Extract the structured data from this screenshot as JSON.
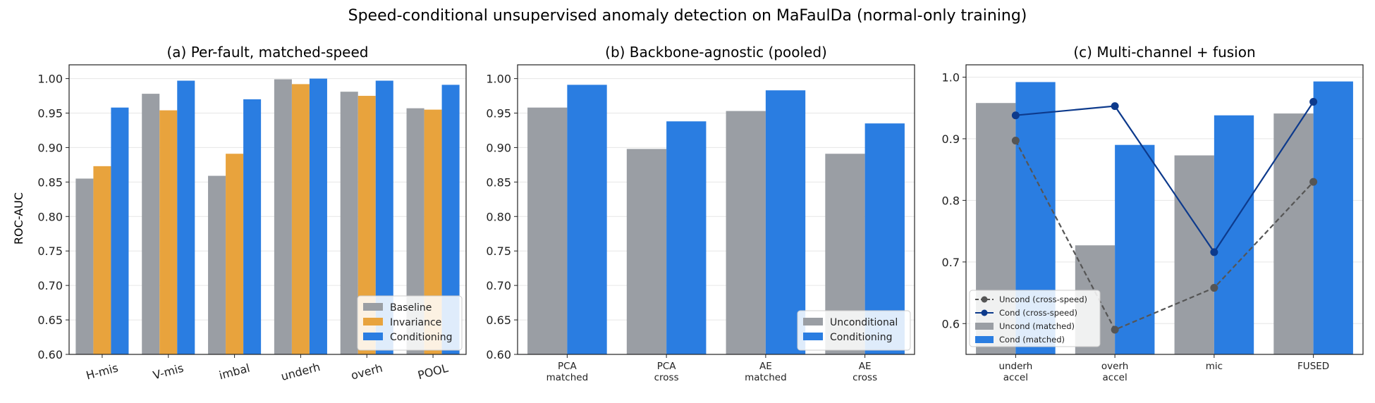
{
  "figure_title": "Speed-conditional unsupervised anomaly detection on MaFaulDa (normal-only training)",
  "colors": {
    "baseline": "#9a9ea4",
    "invariance": "#e8a33d",
    "conditioning": "#2a7de1",
    "uncond_line": "#555555",
    "cond_line": "#0d3a8c",
    "grid": "#e6e6e6"
  },
  "chart_data": [
    {
      "type": "bar",
      "title": "(a) Per-fault, matched-speed",
      "ylabel": "ROC-AUC",
      "xlabel": "",
      "ylim": [
        0.6,
        1.02
      ],
      "yticks": [
        "0.60",
        "0.65",
        "0.70",
        "0.75",
        "0.80",
        "0.85",
        "0.90",
        "0.95",
        "1.00"
      ],
      "categories": [
        "H-mis",
        "V-mis",
        "imbal",
        "underh",
        "overh",
        "POOL"
      ],
      "series": [
        {
          "name": "Baseline",
          "values": [
            0.855,
            0.978,
            0.859,
            0.999,
            0.981,
            0.957
          ]
        },
        {
          "name": "Invariance",
          "values": [
            0.873,
            0.954,
            0.891,
            0.992,
            0.975,
            0.955
          ]
        },
        {
          "name": "Conditioning",
          "values": [
            0.958,
            0.997,
            0.97,
            1.0,
            0.997,
            0.991
          ]
        }
      ],
      "legend": "lower-right",
      "grid": true
    },
    {
      "type": "bar",
      "title": "(b) Backbone-agnostic (pooled)",
      "xlabel": "",
      "ylabel": "",
      "ylim": [
        0.6,
        1.02
      ],
      "yticks": [
        "0.60",
        "0.65",
        "0.70",
        "0.75",
        "0.80",
        "0.85",
        "0.90",
        "0.95",
        "1.00"
      ],
      "categories": [
        [
          "PCA",
          "matched"
        ],
        [
          "PCA",
          "cross"
        ],
        [
          "AE",
          "matched"
        ],
        [
          "AE",
          "cross"
        ]
      ],
      "series": [
        {
          "name": "Unconditional",
          "values": [
            0.958,
            0.898,
            0.953,
            0.891
          ]
        },
        {
          "name": "Conditioning",
          "values": [
            0.991,
            0.938,
            0.983,
            0.935
          ]
        }
      ],
      "legend": "lower-right",
      "grid": true
    },
    {
      "type": "bar+line",
      "title": "(c) Multi-channel + fusion",
      "xlabel": "",
      "ylabel": "",
      "ylim": [
        0.55,
        1.02
      ],
      "yticks": [
        "0.6",
        "0.7",
        "0.8",
        "0.9",
        "1.0"
      ],
      "categories": [
        [
          "underh",
          "accel"
        ],
        [
          "overh",
          "accel"
        ],
        [
          "mic"
        ],
        [
          "FUSED"
        ]
      ],
      "bars": [
        {
          "name": "Uncond (matched)",
          "values": [
            0.958,
            0.727,
            0.873,
            0.941
          ]
        },
        {
          "name": "Cond (matched)",
          "values": [
            0.992,
            0.89,
            0.938,
            0.993
          ]
        }
      ],
      "lines": [
        {
          "name": "Uncond (cross-speed)",
          "style": "dashed",
          "values": [
            0.897,
            0.59,
            0.658,
            0.83
          ]
        },
        {
          "name": "Cond (cross-speed)",
          "style": "solid",
          "values": [
            0.938,
            0.953,
            0.716,
            0.96
          ]
        }
      ],
      "legend": "lower-left",
      "grid": true
    }
  ]
}
